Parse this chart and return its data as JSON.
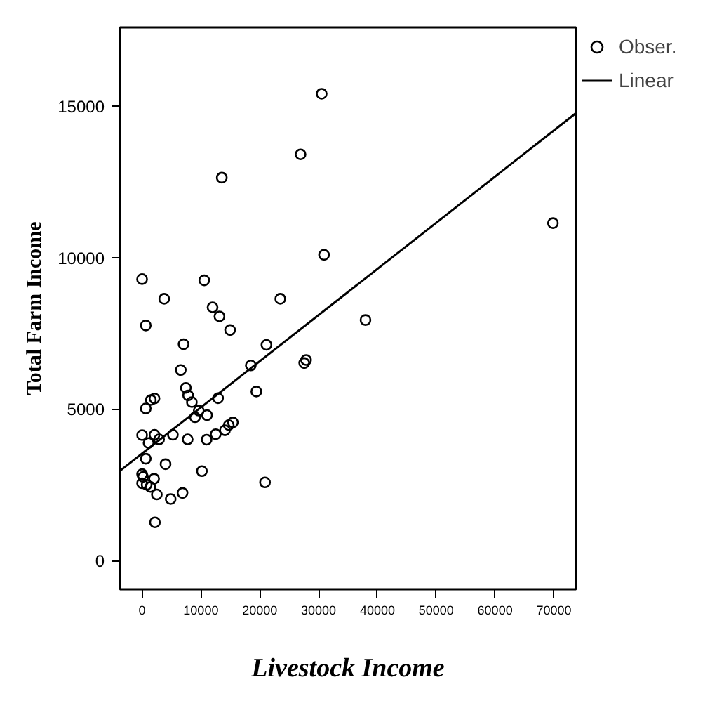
{
  "chart_data": {
    "type": "scatter",
    "xlabel": "Livestock Income",
    "ylabel": "Total Farm Income",
    "xlim": [
      -3760,
      73760
    ],
    "ylim": [
      -950,
      17600
    ],
    "xticks": [
      0,
      10000,
      20000,
      30000,
      40000,
      50000,
      60000,
      70000
    ],
    "yticks": [
      0,
      5000,
      10000,
      15000
    ],
    "grid": false,
    "legend": "top right",
    "marker": "circle",
    "series": [
      {
        "name": "Obser.",
        "color": "#000000",
        "x": [
          30530,
          26940,
          13550,
          30930,
          0,
          10570,
          3760,
          23490,
          11980,
          13150,
          630,
          14960,
          37980,
          69840,
          7050,
          21140,
          6580,
          18480,
          27560,
          27880,
          19420,
          7440,
          7830,
          8460,
          12920,
          2110,
          1490,
          630,
          9630,
          9000,
          11040,
          0,
          2110,
          2890,
          1100,
          5240,
          7750,
          10970,
          12520,
          14090,
          14730,
          15430,
          630,
          3990,
          0,
          160,
          2040,
          0,
          780,
          1410,
          10170,
          2510,
          4860,
          6880,
          20900,
          2190
        ],
        "values": [
          15410,
          13410,
          12640,
          10090,
          9290,
          9250,
          8640,
          8640,
          8360,
          8060,
          7760,
          7610,
          7940,
          11140,
          7140,
          7120,
          6290,
          6440,
          6520,
          6620,
          5580,
          5700,
          5450,
          5230,
          5360,
          5350,
          5300,
          5020,
          4950,
          4730,
          4800,
          4140,
          4150,
          4000,
          3880,
          4150,
          4000,
          3990,
          4170,
          4300,
          4470,
          4560,
          3360,
          3180,
          2850,
          2760,
          2700,
          2550,
          2500,
          2430,
          2950,
          2180,
          2030,
          2230,
          2580,
          1260
        ]
      },
      {
        "name": "Linear",
        "type": "line",
        "color": "#000000",
        "marker": "none",
        "x": [
          -3760,
          73760
        ],
        "values": [
          2960,
          14770
        ]
      }
    ]
  }
}
